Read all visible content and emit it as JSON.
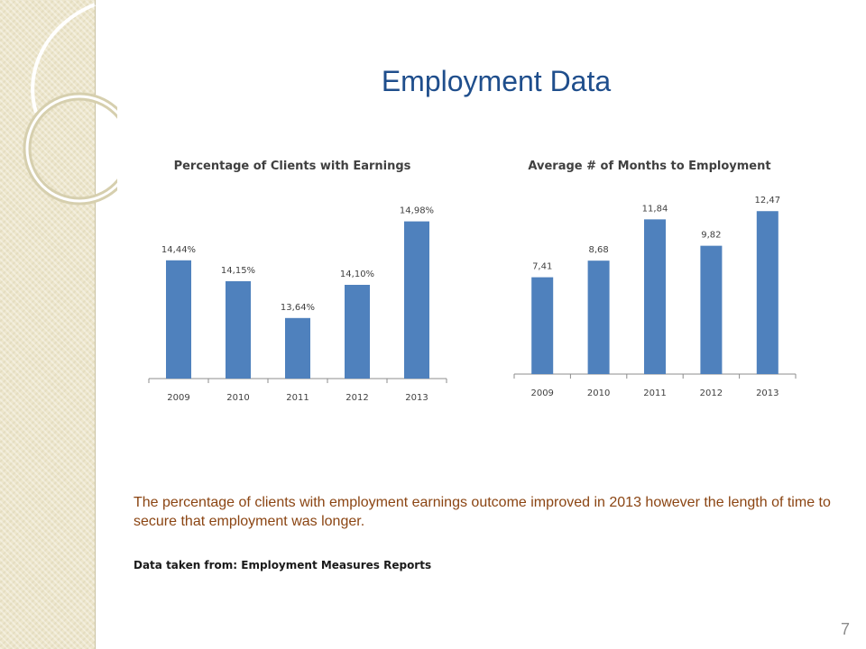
{
  "slide": {
    "title": "Employment Data",
    "note": "The percentage of clients with employment earnings outcome improved in 2013 however the length of time to secure that employment was longer.",
    "source": "Data taken from: Employment Measures Reports",
    "page_number": "7"
  },
  "colors": {
    "bar": "#4f81bd",
    "title": "#1f4e8c",
    "note": "#8b4513",
    "sidebar": "#ede6cc"
  },
  "chart_data": [
    {
      "type": "bar",
      "title": "Percentage of Clients with Earnings",
      "categories": [
        "2009",
        "2010",
        "2011",
        "2012",
        "2013"
      ],
      "values": [
        14.44,
        14.15,
        13.64,
        14.1,
        14.98
      ],
      "data_labels": [
        "14,44%",
        "14,15%",
        "13,64%",
        "14,10%",
        "14,98%"
      ],
      "xlabel": "",
      "ylabel": "",
      "ylim": [
        12.8,
        15.2
      ],
      "grid": false,
      "legend": "none"
    },
    {
      "type": "bar",
      "title": "Average # of Months to Employment",
      "categories": [
        "2009",
        "2010",
        "2011",
        "2012",
        "2013"
      ],
      "values": [
        7.41,
        8.68,
        11.84,
        9.82,
        12.47
      ],
      "data_labels": [
        "7,41",
        "8,68",
        "11,84",
        "9,82",
        "12,47"
      ],
      "xlabel": "",
      "ylabel": "",
      "ylim": [
        0,
        12.9
      ],
      "grid": false,
      "legend": "none"
    }
  ]
}
